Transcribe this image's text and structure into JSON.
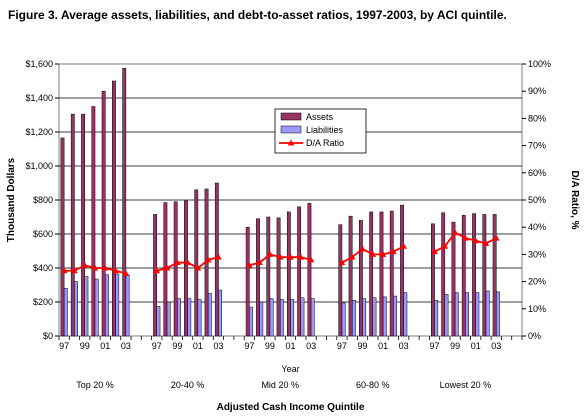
{
  "chart_data": {
    "type": "bar",
    "title": "Figure 3. Average assets, liabilities, and debt-to-asset ratios, 1997-2003, by ACI quintile.",
    "ylabel": "Thousand Dollars",
    "y2label": "D/A Ratio, %",
    "xlabel": "Year",
    "group_axis_label": "Adjusted Cash Income Quintile",
    "ylim": [
      0,
      1600
    ],
    "y2lim": [
      0,
      100
    ],
    "yticks": [
      "$0",
      "$200",
      "$400",
      "$600",
      "$800",
      "$1,000",
      "$1,200",
      "$1,400",
      "$1,600"
    ],
    "y2ticks": [
      "0%",
      "10%",
      "20%",
      "30%",
      "40%",
      "50%",
      "60%",
      "70%",
      "80%",
      "90%",
      "100%"
    ],
    "year_tick_labels": [
      "97",
      "99",
      "01",
      "03"
    ],
    "years": [
      "1997",
      "1998",
      "1999",
      "2000",
      "2001",
      "2002",
      "2003"
    ],
    "legend": [
      "Assets",
      "Liabilities",
      "D/A Ratio"
    ],
    "legend_position": "center",
    "grid": "horizontal",
    "colors": {
      "assets": "#993366",
      "liabilities": "#9999ff",
      "ratio": "#ff0000"
    },
    "groups": [
      {
        "name": "Top 20 %",
        "assets": [
          1165,
          1305,
          1305,
          1350,
          1440,
          1500,
          1575
        ],
        "liabilities": [
          280,
          320,
          350,
          335,
          360,
          365,
          360
        ],
        "ratio": [
          24,
          24,
          26,
          25,
          25,
          24,
          23
        ]
      },
      {
        "name": "20-40 %",
        "assets": [
          715,
          785,
          790,
          795,
          860,
          865,
          900
        ],
        "liabilities": [
          175,
          200,
          220,
          220,
          215,
          250,
          270
        ],
        "ratio": [
          24,
          25,
          27,
          27,
          25,
          28,
          29
        ]
      },
      {
        "name": "Mid 20 %",
        "assets": [
          640,
          690,
          700,
          695,
          730,
          760,
          780
        ],
        "liabilities": [
          170,
          200,
          220,
          215,
          215,
          225,
          220
        ],
        "ratio": [
          26,
          27,
          30,
          29,
          29,
          29,
          28
        ]
      },
      {
        "name": "60-80 %",
        "assets": [
          655,
          705,
          680,
          730,
          730,
          735,
          770
        ],
        "liabilities": [
          195,
          210,
          220,
          225,
          230,
          235,
          255
        ],
        "ratio": [
          27,
          29,
          32,
          30,
          30,
          31,
          33
        ]
      },
      {
        "name": "Lowest 20 %",
        "assets": [
          660,
          725,
          670,
          710,
          720,
          715,
          715
        ],
        "liabilities": [
          210,
          245,
          255,
          255,
          255,
          265,
          260
        ],
        "ratio": [
          31,
          33,
          38,
          36,
          35,
          34,
          36
        ]
      }
    ]
  }
}
